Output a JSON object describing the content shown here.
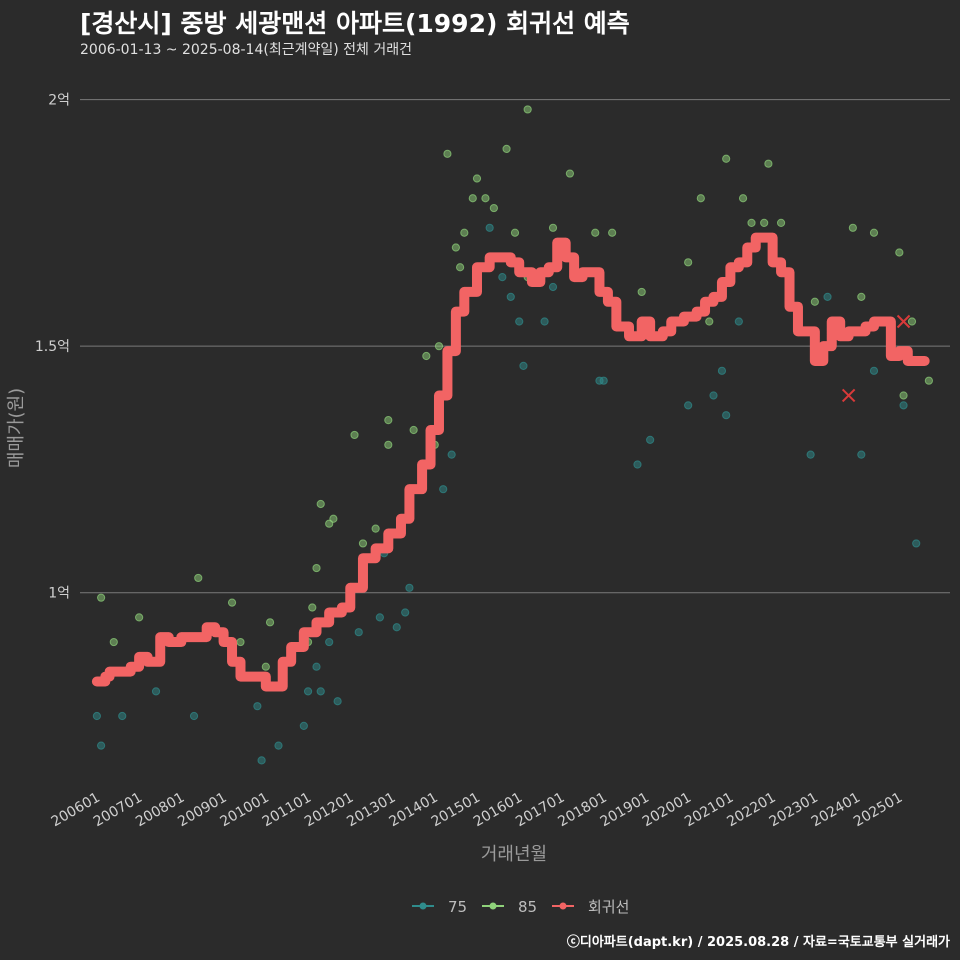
{
  "header": {
    "title": "[경산시] 중방 세광맨션 아파트(1992) 회귀선 예측",
    "subtitle": "2006-01-13 ~ 2025-08-14(최근계약일) 전체 거래건"
  },
  "caption": "ⓒ디아파트(dapt.kr) / 2025.08.28 / 자료=국토교통부 실거래가",
  "chart_data": {
    "type": "scatter",
    "title": "[경산시] 중방 세광맨션 아파트(1992) 회귀선 예측",
    "subtitle": "2006-01-13 ~ 2025-08-14(최근계약일) 전체 거래건",
    "xlabel": "거래년월",
    "ylabel": "매매가(원)",
    "xlim": [
      2005.6,
      2026.2
    ],
    "ylim": [
      0.6,
      2.06
    ],
    "y_ticks": [
      {
        "value": 1.0,
        "label": "1억"
      },
      {
        "value": 1.5,
        "label": "1.5억"
      },
      {
        "value": 2.0,
        "label": "2억"
      }
    ],
    "x_ticks": [
      {
        "value": 2006,
        "label": "200601"
      },
      {
        "value": 2007,
        "label": "200701"
      },
      {
        "value": 2008,
        "label": "200801"
      },
      {
        "value": 2009,
        "label": "200901"
      },
      {
        "value": 2010,
        "label": "201001"
      },
      {
        "value": 2011,
        "label": "201101"
      },
      {
        "value": 2012,
        "label": "201201"
      },
      {
        "value": 2013,
        "label": "201301"
      },
      {
        "value": 2014,
        "label": "201401"
      },
      {
        "value": 2015,
        "label": "201501"
      },
      {
        "value": 2016,
        "label": "201601"
      },
      {
        "value": 2017,
        "label": "201701"
      },
      {
        "value": 2018,
        "label": "201801"
      },
      {
        "value": 2019,
        "label": "201901"
      },
      {
        "value": 2020,
        "label": "202001"
      },
      {
        "value": 2021,
        "label": "202101"
      },
      {
        "value": 2022,
        "label": "202201"
      },
      {
        "value": 2023,
        "label": "202301"
      },
      {
        "value": 2024,
        "label": "202401"
      },
      {
        "value": 2025,
        "label": "202501"
      }
    ],
    "grid": "horizontal",
    "legend_position": "bottom",
    "colors": {
      "s75": "#2f8c8c",
      "s85": "#8fd27a",
      "trend": "#f26464",
      "cancel": "#d93a3a",
      "grid": "#7a7a7a",
      "axis_text": "#cfcfcf"
    },
    "series": [
      {
        "name": "75",
        "color": "#2f8c8c",
        "points": [
          [
            2006.0,
            0.75
          ],
          [
            2006.1,
            0.69
          ],
          [
            2006.6,
            0.75
          ],
          [
            2007.4,
            0.8
          ],
          [
            2008.3,
            0.75
          ],
          [
            2009.8,
            0.77
          ],
          [
            2010.3,
            0.69
          ],
          [
            2009.9,
            0.66
          ],
          [
            2010.9,
            0.73
          ],
          [
            2011.0,
            0.8
          ],
          [
            2011.2,
            0.85
          ],
          [
            2011.3,
            0.8
          ],
          [
            2011.5,
            0.9
          ],
          [
            2011.7,
            0.78
          ],
          [
            2012.2,
            0.92
          ],
          [
            2012.7,
            0.95
          ],
          [
            2012.8,
            1.08
          ],
          [
            2013.1,
            0.93
          ],
          [
            2013.3,
            0.96
          ],
          [
            2013.4,
            1.01
          ],
          [
            2014.2,
            1.21
          ],
          [
            2014.4,
            1.28
          ],
          [
            2015.3,
            1.74
          ],
          [
            2015.6,
            1.64
          ],
          [
            2015.8,
            1.6
          ],
          [
            2016.0,
            1.55
          ],
          [
            2016.1,
            1.46
          ],
          [
            2016.3,
            1.63
          ],
          [
            2016.6,
            1.55
          ],
          [
            2016.8,
            1.62
          ],
          [
            2017.1,
            1.7
          ],
          [
            2017.9,
            1.43
          ],
          [
            2018.0,
            1.43
          ],
          [
            2018.8,
            1.26
          ],
          [
            2019.1,
            1.31
          ],
          [
            2020.0,
            1.38
          ],
          [
            2020.6,
            1.4
          ],
          [
            2020.8,
            1.45
          ],
          [
            2020.9,
            1.36
          ],
          [
            2021.2,
            1.55
          ],
          [
            2022.9,
            1.28
          ],
          [
            2023.3,
            1.6
          ],
          [
            2024.1,
            1.28
          ],
          [
            2025.1,
            1.38
          ],
          [
            2025.4,
            1.1
          ],
          [
            2024.4,
            1.45
          ]
        ]
      },
      {
        "name": "85",
        "color": "#8fd27a",
        "points": [
          [
            2006.1,
            0.99
          ],
          [
            2006.4,
            0.9
          ],
          [
            2007.0,
            0.95
          ],
          [
            2008.4,
            1.03
          ],
          [
            2009.2,
            0.98
          ],
          [
            2009.4,
            0.9
          ],
          [
            2010.0,
            0.85
          ],
          [
            2010.1,
            0.94
          ],
          [
            2011.0,
            0.9
          ],
          [
            2011.1,
            0.97
          ],
          [
            2011.2,
            1.05
          ],
          [
            2011.3,
            1.18
          ],
          [
            2011.5,
            1.14
          ],
          [
            2011.6,
            1.15
          ],
          [
            2012.0,
            1.0
          ],
          [
            2012.1,
            1.32
          ],
          [
            2012.3,
            1.1
          ],
          [
            2012.6,
            1.13
          ],
          [
            2012.9,
            1.3
          ],
          [
            2012.9,
            1.35
          ],
          [
            2013.4,
            1.2
          ],
          [
            2013.5,
            1.33
          ],
          [
            2013.8,
            1.48
          ],
          [
            2014.0,
            1.3
          ],
          [
            2014.1,
            1.5
          ],
          [
            2014.3,
            1.89
          ],
          [
            2014.5,
            1.7
          ],
          [
            2014.6,
            1.66
          ],
          [
            2014.7,
            1.73
          ],
          [
            2014.9,
            1.8
          ],
          [
            2015.0,
            1.84
          ],
          [
            2015.2,
            1.8
          ],
          [
            2015.4,
            1.78
          ],
          [
            2015.7,
            1.9
          ],
          [
            2015.9,
            1.73
          ],
          [
            2016.2,
            1.64
          ],
          [
            2016.2,
            1.98
          ],
          [
            2016.8,
            1.74
          ],
          [
            2017.2,
            1.85
          ],
          [
            2017.8,
            1.73
          ],
          [
            2018.2,
            1.73
          ],
          [
            2018.9,
            1.61
          ],
          [
            2019.8,
            1.55
          ],
          [
            2020.0,
            1.67
          ],
          [
            2020.3,
            1.8
          ],
          [
            2020.5,
            1.55
          ],
          [
            2020.9,
            1.88
          ],
          [
            2021.3,
            1.8
          ],
          [
            2021.5,
            1.75
          ],
          [
            2021.8,
            1.75
          ],
          [
            2021.9,
            1.87
          ],
          [
            2022.2,
            1.75
          ],
          [
            2023.0,
            1.59
          ],
          [
            2023.9,
            1.74
          ],
          [
            2024.1,
            1.6
          ],
          [
            2024.4,
            1.73
          ],
          [
            2025.0,
            1.69
          ],
          [
            2025.1,
            1.4
          ],
          [
            2025.3,
            1.55
          ],
          [
            2025.7,
            1.43
          ]
        ]
      },
      {
        "name": "회귀선",
        "color": "#f26464",
        "points": [
          [
            2006.0,
            0.82
          ],
          [
            2006.2,
            0.83
          ],
          [
            2006.3,
            0.84
          ],
          [
            2006.6,
            0.84
          ],
          [
            2006.8,
            0.85
          ],
          [
            2007.0,
            0.87
          ],
          [
            2007.2,
            0.86
          ],
          [
            2007.4,
            0.86
          ],
          [
            2007.5,
            0.91
          ],
          [
            2007.7,
            0.9
          ],
          [
            2008.0,
            0.91
          ],
          [
            2008.3,
            0.91
          ],
          [
            2008.6,
            0.93
          ],
          [
            2008.8,
            0.92
          ],
          [
            2009.0,
            0.9
          ],
          [
            2009.2,
            0.86
          ],
          [
            2009.4,
            0.83
          ],
          [
            2009.6,
            0.83
          ],
          [
            2009.8,
            0.83
          ],
          [
            2010.0,
            0.81
          ],
          [
            2010.2,
            0.81
          ],
          [
            2010.4,
            0.86
          ],
          [
            2010.6,
            0.89
          ],
          [
            2010.9,
            0.92
          ],
          [
            2011.2,
            0.94
          ],
          [
            2011.5,
            0.96
          ],
          [
            2011.8,
            0.97
          ],
          [
            2012.0,
            1.01
          ],
          [
            2012.3,
            1.07
          ],
          [
            2012.6,
            1.09
          ],
          [
            2012.9,
            1.12
          ],
          [
            2013.2,
            1.15
          ],
          [
            2013.4,
            1.21
          ],
          [
            2013.7,
            1.26
          ],
          [
            2013.9,
            1.33
          ],
          [
            2014.1,
            1.4
          ],
          [
            2014.3,
            1.49
          ],
          [
            2014.5,
            1.57
          ],
          [
            2014.7,
            1.61
          ],
          [
            2015.0,
            1.66
          ],
          [
            2015.3,
            1.68
          ],
          [
            2015.6,
            1.68
          ],
          [
            2015.8,
            1.67
          ],
          [
            2016.0,
            1.65
          ],
          [
            2016.3,
            1.63
          ],
          [
            2016.5,
            1.65
          ],
          [
            2016.7,
            1.66
          ],
          [
            2016.9,
            1.71
          ],
          [
            2017.1,
            1.68
          ],
          [
            2017.3,
            1.64
          ],
          [
            2017.5,
            1.65
          ],
          [
            2017.7,
            1.65
          ],
          [
            2017.9,
            1.61
          ],
          [
            2018.1,
            1.59
          ],
          [
            2018.3,
            1.54
          ],
          [
            2018.6,
            1.52
          ],
          [
            2018.9,
            1.55
          ],
          [
            2019.1,
            1.52
          ],
          [
            2019.4,
            1.53
          ],
          [
            2019.6,
            1.55
          ],
          [
            2019.9,
            1.56
          ],
          [
            2020.2,
            1.57
          ],
          [
            2020.4,
            1.59
          ],
          [
            2020.6,
            1.6
          ],
          [
            2020.8,
            1.63
          ],
          [
            2021.0,
            1.66
          ],
          [
            2021.2,
            1.67
          ],
          [
            2021.4,
            1.7
          ],
          [
            2021.6,
            1.72
          ],
          [
            2021.8,
            1.72
          ],
          [
            2022.0,
            1.67
          ],
          [
            2022.2,
            1.65
          ],
          [
            2022.4,
            1.58
          ],
          [
            2022.6,
            1.53
          ],
          [
            2022.8,
            1.53
          ],
          [
            2023.0,
            1.47
          ],
          [
            2023.2,
            1.5
          ],
          [
            2023.4,
            1.55
          ],
          [
            2023.6,
            1.52
          ],
          [
            2023.8,
            1.53
          ],
          [
            2024.0,
            1.53
          ],
          [
            2024.2,
            1.54
          ],
          [
            2024.4,
            1.55
          ],
          [
            2024.6,
            1.55
          ],
          [
            2024.8,
            1.48
          ],
          [
            2025.0,
            1.49
          ],
          [
            2025.2,
            1.47
          ],
          [
            2025.4,
            1.47
          ],
          [
            2025.6,
            1.47
          ]
        ]
      }
    ],
    "cancelled_marks": [
      [
        2023.8,
        1.4
      ],
      [
        2025.1,
        1.55
      ]
    ]
  }
}
